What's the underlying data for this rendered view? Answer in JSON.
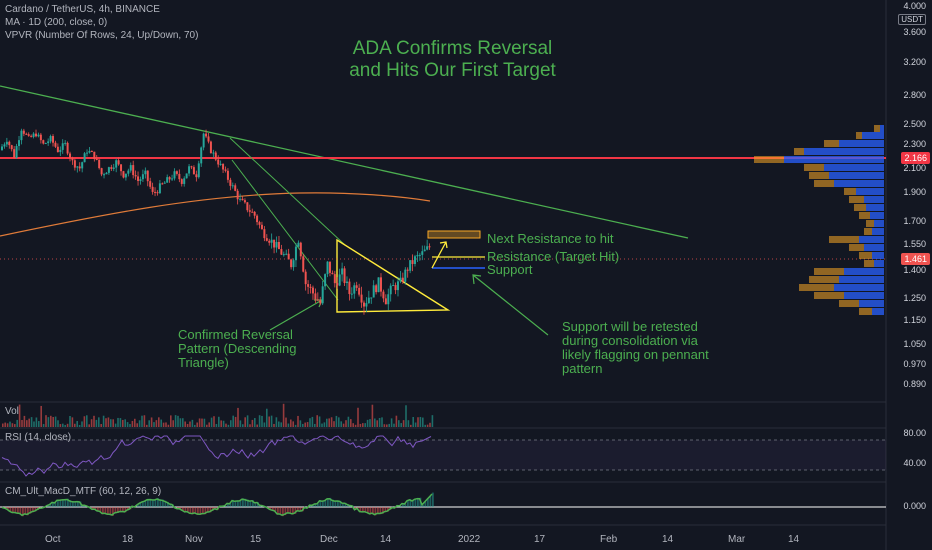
{
  "header": {
    "symbol_line": "Cardano / TetherUS, 4h, BINANCE",
    "ma_line": "MA · 1D (200, close, 0)",
    "vpvr_line": "VPVR (Number Of Rows, 24, Up/Down, 70)",
    "currency": "USDT"
  },
  "annotations": {
    "title_line1": "ADA Confirms Reversal",
    "title_line2": "and Hits Our First Target",
    "next_resistance": "Next Resistance to hit",
    "resistance_hit": "Resistance (Target Hit)",
    "support": "Support",
    "reversal_line1": "Confirmed Reversal",
    "reversal_line2": "Pattern (Descending",
    "reversal_line3": "Triangle)",
    "retest_line1": "Support will be retested",
    "retest_line2": "during consolidation via",
    "retest_line3": "likely flagging on pennant",
    "retest_line4": "pattern"
  },
  "panes": {
    "vol_label": "Vol",
    "rsi_label": "RSI (14, close)",
    "macd_label": "CM_Ult_MacD_MTF (60, 12, 26, 9)"
  },
  "colors": {
    "up": "#26a69a",
    "down": "#ef5350",
    "accent_green": "#4caf50",
    "resistance_red": "#f23645",
    "triangle_yellow": "#ffeb3b",
    "ma_orange": "#e07b39",
    "support_blue": "#2962ff"
  },
  "chart_data": {
    "type": "candlestick",
    "price_axis_ticks": [
      "4.000",
      "3.600",
      "3.200",
      "2.800",
      "2.500",
      "2.300",
      "2.100",
      "1.900",
      "1.700",
      "1.550",
      "1.400",
      "1.250",
      "1.150",
      "1.050",
      "0.970",
      "0.890"
    ],
    "time_axis_ticks": [
      "Oct",
      "18",
      "Nov",
      "15",
      "Dec",
      "14",
      "2022",
      "17",
      "Feb",
      "14",
      "Mar",
      "14"
    ],
    "current_price": "1.461",
    "resistance_price": "2.166",
    "rsi_ticks": [
      "80.00",
      "40.00"
    ],
    "macd_ticks": [
      "0.000"
    ],
    "key_levels": {
      "next_resistance_zone": [
        1.58,
        1.62
      ],
      "target_hit": 1.46,
      "support": 1.41,
      "major_resistance": 2.166
    },
    "price_path": [
      2.2,
      2.3,
      2.15,
      2.4,
      2.3,
      2.35,
      2.25,
      2.3,
      2.2,
      2.25,
      2.1,
      2.05,
      2.2,
      2.15,
      2.0,
      2.05,
      2.1,
      2.0,
      2.05,
      1.95,
      2.0,
      1.85,
      1.9,
      1.95,
      2.0,
      1.95,
      2.05,
      2.0,
      2.35,
      2.2,
      2.1,
      2.0,
      1.9,
      1.8,
      1.75,
      1.7,
      1.6,
      1.55,
      1.5,
      1.45,
      1.4,
      1.55,
      1.3,
      1.25,
      1.2,
      1.4,
      1.3,
      1.35,
      1.25,
      1.3,
      1.2,
      1.25,
      1.3,
      1.22,
      1.28,
      1.3,
      1.38,
      1.43,
      1.46,
      1.5
    ]
  }
}
